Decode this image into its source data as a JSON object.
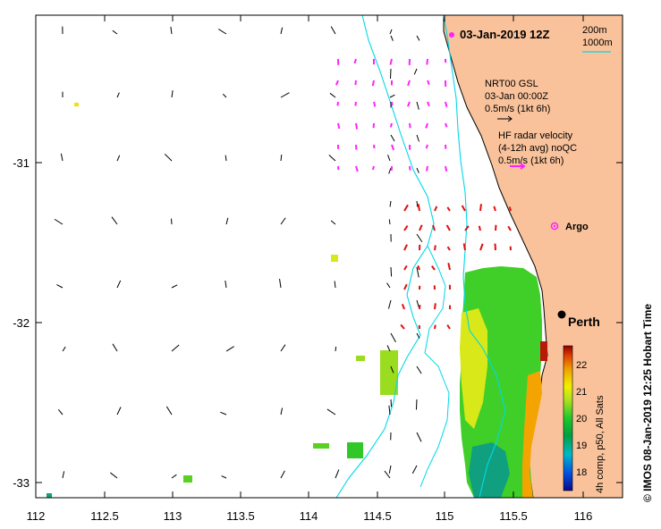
{
  "map": {
    "title": "03-Jan-2019 12Z",
    "credit": "© IMOS 08-Jan-2019 12:25 Hobart Time",
    "x_ticks": [
      "112",
      "112.5",
      "113",
      "113.5",
      "114",
      "114.5",
      "115",
      "115.5",
      "116"
    ],
    "y_ticks": [
      "-31",
      "-32",
      "-33"
    ],
    "xlim": [
      112,
      116.3
    ],
    "ylim": [
      -33.1,
      -30.1
    ],
    "land_color": "#f9c29b",
    "isobath_color": "#00d8e8",
    "depth_legend": {
      "line1": "200m",
      "line2": "1000m"
    },
    "wind_legend": {
      "line1": "NRT00 GSL",
      "line2": "03-Jan 00:00Z",
      "line3": "0.5m/s (1kt 6h)"
    },
    "radar_legend": {
      "line1": "HF radar velocity",
      "line2": "(4-12h avg) noQC",
      "line3": "0.5m/s (1kt 6h)"
    },
    "radar_color": "#ff22ff",
    "argo_label": "Argo",
    "city_label": "Perth",
    "colorbar": {
      "label": "4h comp, p50, All Sats",
      "ticks": [
        "22",
        "21",
        "20",
        "19",
        "18"
      ],
      "range": [
        17.5,
        22.8
      ]
    }
  }
}
